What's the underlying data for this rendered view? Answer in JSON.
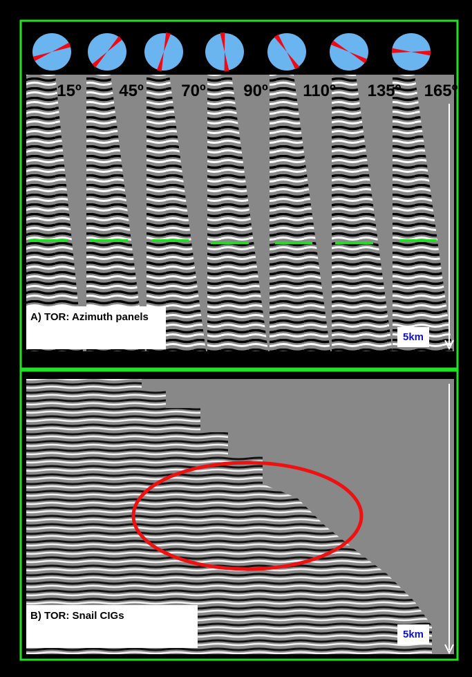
{
  "panel_a": {
    "azimuths": [
      "15º",
      "45º",
      "70º",
      "90º",
      "110º",
      "135º",
      "165º"
    ],
    "caption": "A) TOR: Azimuth panels",
    "scale": "5km"
  },
  "panel_b": {
    "caption": "B) TOR: Snail CIGs",
    "scale": "5km"
  }
}
